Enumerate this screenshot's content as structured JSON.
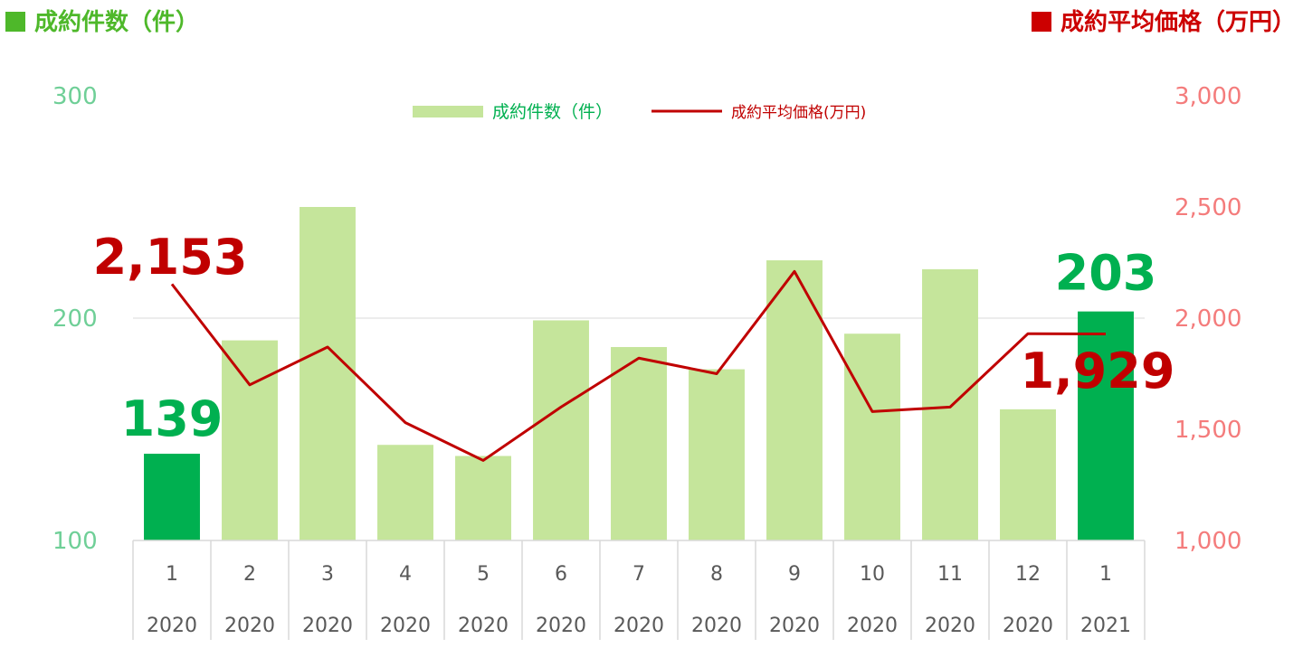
{
  "header": {
    "left_label": "成約件数（件）",
    "right_label": "成約平均価格（万円）"
  },
  "colors": {
    "bar": "#c5e59b",
    "bar_highlight": "#00b050",
    "line": "#c00000",
    "left_axis": "#6fcf97",
    "right_axis": "#f47c7c",
    "header_left": "#4eb82a",
    "header_right": "#cc0000"
  },
  "chart_data": {
    "type": "bar",
    "legend": {
      "placement": "top-center",
      "bar_label": "成約件数（件）",
      "line_label": "成約平均価格(万円)"
    },
    "categories": [
      {
        "month": "1",
        "year": "2020"
      },
      {
        "month": "2",
        "year": "2020"
      },
      {
        "month": "3",
        "year": "2020"
      },
      {
        "month": "4",
        "year": "2020"
      },
      {
        "month": "5",
        "year": "2020"
      },
      {
        "month": "6",
        "year": "2020"
      },
      {
        "month": "7",
        "year": "2020"
      },
      {
        "month": "8",
        "year": "2020"
      },
      {
        "month": "9",
        "year": "2020"
      },
      {
        "month": "10",
        "year": "2020"
      },
      {
        "month": "11",
        "year": "2020"
      },
      {
        "month": "12",
        "year": "2020"
      },
      {
        "month": "1",
        "year": "2021"
      }
    ],
    "series": [
      {
        "type": "bar",
        "axis": "left",
        "values": [
          139,
          190,
          250,
          143,
          138,
          199,
          187,
          177,
          226,
          193,
          222,
          159,
          203
        ],
        "highlight_indices": [
          0,
          12
        ]
      },
      {
        "type": "line",
        "axis": "right",
        "values": [
          2153,
          1700,
          1870,
          1530,
          1360,
          1600,
          1820,
          1750,
          2210,
          1580,
          1600,
          1930,
          1929
        ]
      }
    ],
    "left_axis": {
      "ylim": [
        100,
        300
      ],
      "ticks": [
        "100",
        "200",
        "300"
      ]
    },
    "right_axis": {
      "ylim": [
        1000,
        3000
      ],
      "ticks": [
        "1,000",
        "1,500",
        "2,000",
        "2,500",
        "3,000"
      ]
    },
    "gridlines": [
      200
    ],
    "data_labels": [
      {
        "series": "bar",
        "index": 0,
        "text": "139"
      },
      {
        "series": "bar",
        "index": 12,
        "text": "203"
      },
      {
        "series": "line",
        "index": 0,
        "text": "2,153"
      },
      {
        "series": "line",
        "index": 12,
        "text": "1,929"
      }
    ]
  }
}
